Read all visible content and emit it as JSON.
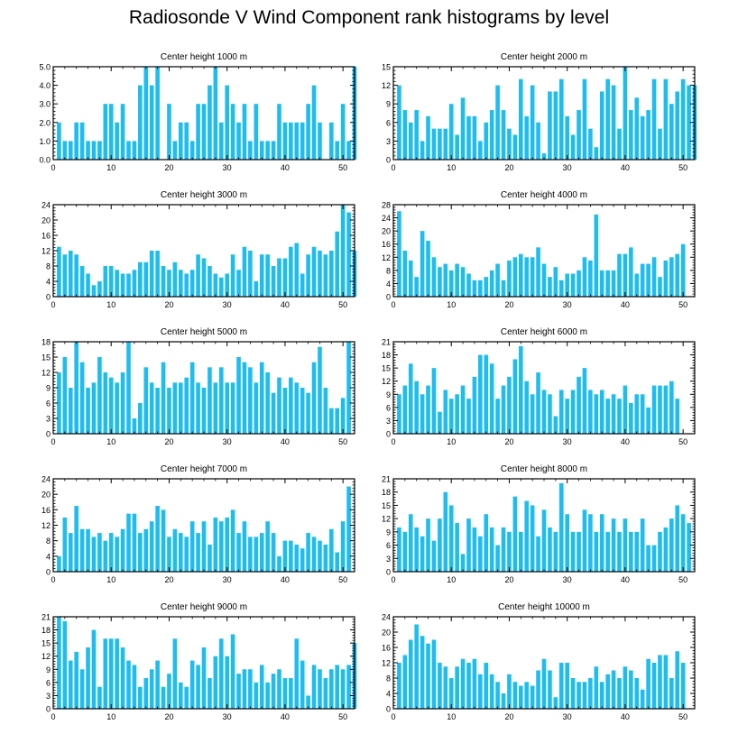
{
  "title": "Radiosonde V Wind Component rank histograms by level",
  "bar_color": "#1ebdf0",
  "chart_data": [
    {
      "type": "bar",
      "title": "Center height 1000 m",
      "xlim": [
        0,
        52
      ],
      "ylim": [
        0,
        5
      ],
      "yticks": [
        0,
        1,
        2,
        3,
        4,
        5
      ],
      "ytick_labels": [
        "0.0",
        "1.0",
        "2.0",
        "3.0",
        "4.0",
        "5.0"
      ],
      "xticks": [
        0,
        10,
        20,
        30,
        40,
        50
      ],
      "values": [
        2,
        1,
        1,
        2,
        2,
        1,
        1,
        1,
        3,
        3,
        2,
        3,
        1,
        1,
        4,
        5,
        4,
        5,
        0,
        3,
        1,
        2,
        2,
        1,
        3,
        3,
        4,
        5,
        2,
        4,
        3,
        2,
        3,
        1,
        3,
        1,
        1,
        1,
        3,
        2,
        2,
        2,
        2,
        3,
        4,
        2,
        0,
        2,
        1,
        3,
        1,
        5
      ]
    },
    {
      "type": "bar",
      "title": "Center height 2000 m",
      "xlim": [
        0,
        52
      ],
      "ylim": [
        0,
        15
      ],
      "yticks": [
        0,
        3,
        6,
        9,
        12,
        15
      ],
      "ytick_labels": [
        "0",
        "3",
        "6",
        "9",
        "12",
        "15"
      ],
      "xticks": [
        0,
        10,
        20,
        30,
        40,
        50
      ],
      "values": [
        12,
        8,
        6,
        8,
        3,
        7,
        5,
        5,
        5,
        9,
        4,
        10,
        7,
        7,
        3,
        6,
        8,
        12,
        8,
        5,
        4,
        13,
        7,
        12,
        6,
        1,
        11,
        11,
        13,
        7,
        4,
        8,
        13,
        5,
        2,
        11,
        13,
        12,
        5,
        15,
        8,
        10,
        7,
        8,
        13,
        5,
        13,
        9,
        11,
        13,
        12,
        12
      ]
    },
    {
      "type": "bar",
      "title": "Center height 3000 m",
      "xlim": [
        0,
        52
      ],
      "ylim": [
        0,
        24
      ],
      "yticks": [
        0,
        4,
        8,
        12,
        16,
        20,
        24
      ],
      "ytick_labels": [
        "0",
        "4",
        "8",
        "12",
        "16",
        "20",
        "24"
      ],
      "xticks": [
        0,
        10,
        20,
        30,
        40,
        50
      ],
      "values": [
        13,
        11,
        12,
        11,
        8,
        6,
        3,
        4,
        8,
        8,
        7,
        6,
        6,
        7,
        9,
        9,
        12,
        12,
        8,
        7,
        9,
        7,
        6,
        7,
        11,
        10,
        8,
        6,
        5,
        6,
        11,
        7,
        13,
        12,
        4,
        11,
        11,
        8,
        10,
        10,
        13,
        14,
        6,
        11,
        13,
        12,
        11,
        12,
        17,
        24,
        22,
        12
      ]
    },
    {
      "type": "bar",
      "title": "Center height 4000 m",
      "xlim": [
        0,
        52
      ],
      "ylim": [
        0,
        28
      ],
      "yticks": [
        0,
        4,
        8,
        12,
        16,
        20,
        24,
        28
      ],
      "ytick_labels": [
        "0",
        "4",
        "8",
        "12",
        "16",
        "20",
        "24",
        "28"
      ],
      "xticks": [
        0,
        10,
        20,
        30,
        40,
        50
      ],
      "values": [
        26,
        14,
        11,
        6,
        20,
        17,
        12,
        9,
        10,
        8,
        10,
        9,
        7,
        5,
        5,
        6,
        8,
        10,
        5,
        11,
        12,
        13,
        12,
        12,
        15,
        10,
        6,
        9,
        5,
        7,
        7,
        8,
        12,
        11,
        25,
        8,
        8,
        8,
        13,
        13,
        15,
        7,
        10,
        10,
        12,
        6,
        11,
        12,
        13,
        16,
        0,
        0
      ]
    },
    {
      "type": "bar",
      "title": "Center height 5000 m",
      "xlim": [
        0,
        52
      ],
      "ylim": [
        0,
        18
      ],
      "yticks": [
        0,
        3,
        6,
        9,
        12,
        15,
        18
      ],
      "ytick_labels": [
        "0",
        "3",
        "6",
        "9",
        "12",
        "15",
        "18"
      ],
      "xticks": [
        0,
        10,
        20,
        30,
        40,
        50
      ],
      "values": [
        12,
        15,
        9,
        18,
        14,
        9,
        10,
        15,
        12,
        11,
        10,
        12,
        18,
        3,
        6,
        13,
        10,
        9,
        14,
        9,
        10,
        10,
        11,
        14,
        10,
        9,
        13,
        10,
        13,
        10,
        10,
        15,
        14,
        13,
        10,
        14,
        12,
        8,
        11,
        9,
        11,
        10,
        9,
        8,
        14,
        17,
        9,
        5,
        5,
        7,
        18,
        0
      ]
    },
    {
      "type": "bar",
      "title": "Center height 6000 m",
      "xlim": [
        0,
        52
      ],
      "ylim": [
        0,
        21
      ],
      "yticks": [
        0,
        3,
        6,
        9,
        12,
        15,
        18,
        21
      ],
      "ytick_labels": [
        "0",
        "3",
        "6",
        "9",
        "12",
        "15",
        "18",
        "21"
      ],
      "xticks": [
        0,
        10,
        20,
        30,
        40,
        50
      ],
      "values": [
        9,
        11,
        16,
        12,
        9,
        11,
        15,
        5,
        10,
        8,
        9,
        11,
        8,
        13,
        18,
        18,
        16,
        8,
        11,
        13,
        17,
        20,
        12,
        9,
        14,
        10,
        9,
        4,
        10,
        8,
        10,
        13,
        15,
        10,
        9,
        10,
        8,
        9,
        8,
        11,
        7,
        9,
        9,
        6,
        11,
        11,
        11,
        12,
        8,
        0,
        0,
        0
      ]
    },
    {
      "type": "bar",
      "title": "Center height 7000 m",
      "xlim": [
        0,
        52
      ],
      "ylim": [
        0,
        24
      ],
      "yticks": [
        0,
        4,
        8,
        12,
        16,
        20,
        24
      ],
      "ytick_labels": [
        "0",
        "4",
        "8",
        "12",
        "16",
        "20",
        "24"
      ],
      "xticks": [
        0,
        10,
        20,
        30,
        40,
        50
      ],
      "values": [
        4,
        14,
        10,
        17,
        11,
        11,
        9,
        10,
        8,
        10,
        9,
        11,
        15,
        15,
        10,
        11,
        13,
        17,
        16,
        9,
        11,
        10,
        9,
        13,
        10,
        13,
        7,
        14,
        13,
        14,
        16,
        10,
        13,
        9,
        9,
        10,
        13,
        10,
        4,
        8,
        8,
        7,
        6,
        10,
        9,
        8,
        7,
        11,
        5,
        13,
        22,
        0
      ]
    },
    {
      "type": "bar",
      "title": "Center height 8000 m",
      "xlim": [
        0,
        52
      ],
      "ylim": [
        0,
        21
      ],
      "yticks": [
        0,
        3,
        6,
        9,
        12,
        15,
        18,
        21
      ],
      "ytick_labels": [
        "0",
        "3",
        "6",
        "9",
        "12",
        "15",
        "18",
        "21"
      ],
      "xticks": [
        0,
        10,
        20,
        30,
        40,
        50
      ],
      "values": [
        10,
        9,
        13,
        10,
        8,
        12,
        7,
        12,
        18,
        15,
        11,
        4,
        12,
        10,
        8,
        13,
        10,
        6,
        10,
        9,
        17,
        9,
        16,
        15,
        8,
        14,
        10,
        9,
        20,
        13,
        9,
        9,
        14,
        13,
        9,
        13,
        9,
        12,
        9,
        12,
        9,
        9,
        12,
        6,
        6,
        9,
        10,
        12,
        15,
        13,
        11,
        0
      ]
    },
    {
      "type": "bar",
      "title": "Center height 9000 m",
      "xlim": [
        0,
        52
      ],
      "ylim": [
        0,
        21
      ],
      "yticks": [
        0,
        3,
        6,
        9,
        12,
        15,
        18,
        21
      ],
      "ytick_labels": [
        "0",
        "3",
        "6",
        "9",
        "12",
        "15",
        "18",
        "21"
      ],
      "xticks": [
        0,
        10,
        20,
        30,
        40,
        50
      ],
      "values": [
        21,
        20,
        11,
        13,
        9,
        14,
        18,
        5,
        16,
        16,
        16,
        14,
        11,
        10,
        5,
        7,
        9,
        11,
        5,
        8,
        16,
        6,
        5,
        11,
        10,
        14,
        7,
        12,
        16,
        12,
        17,
        8,
        9,
        9,
        6,
        10,
        6,
        8,
        9,
        7,
        7,
        16,
        11,
        3,
        10,
        9,
        7,
        9,
        10,
        9,
        10,
        15
      ]
    },
    {
      "type": "bar",
      "title": "Center height 10000 m",
      "xlim": [
        0,
        52
      ],
      "ylim": [
        0,
        24
      ],
      "yticks": [
        0,
        4,
        8,
        12,
        16,
        20,
        24
      ],
      "ytick_labels": [
        "0",
        "4",
        "8",
        "12",
        "16",
        "20",
        "24"
      ],
      "xticks": [
        0,
        10,
        20,
        30,
        40,
        50
      ],
      "values": [
        12,
        14,
        18,
        22,
        19,
        17,
        18,
        12,
        11,
        8,
        11,
        13,
        12,
        13,
        9,
        12,
        9,
        7,
        4,
        9,
        7,
        6,
        7,
        6,
        10,
        13,
        10,
        3,
        12,
        12,
        8,
        7,
        7,
        8,
        11,
        7,
        9,
        10,
        8,
        11,
        10,
        8,
        5,
        13,
        12,
        14,
        14,
        8,
        15,
        12,
        0,
        0
      ]
    }
  ]
}
